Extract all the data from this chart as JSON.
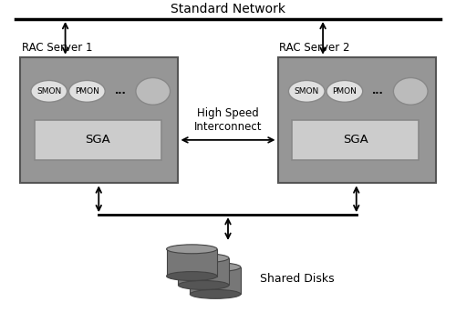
{
  "bg_color": "#ffffff",
  "server_box_color": "#969696",
  "server_box_edge": "#555555",
  "sga_box_color": "#cccccc",
  "sga_box_edge": "#888888",
  "ellipse_color": "#e0e0e0",
  "ellipse_edge": "#888888",
  "big_ellipse_color": "#bbbbbb",
  "big_ellipse_edge": "#888888",
  "arrow_color": "#111111",
  "title": "Standard Network",
  "server1_label": "RAC Server 1",
  "server2_label": "RAC Server 2",
  "interconnect_label": "High Speed\nInterconnect",
  "shared_disks_label": "Shared Disks",
  "sga_label": "SGA",
  "smon_label": "SMON",
  "pmon_label": "PMON",
  "dots_label": "...",
  "disk_top_color": "#999999",
  "disk_side_color": "#777777",
  "disk_dark_color": "#555555",
  "disk_edge": "#444444",
  "font_size_title": 10,
  "font_size_labels": 8.5,
  "font_size_sga": 9.5,
  "font_size_small": 6.5,
  "font_size_dots": 8,
  "font_size_shared": 9
}
